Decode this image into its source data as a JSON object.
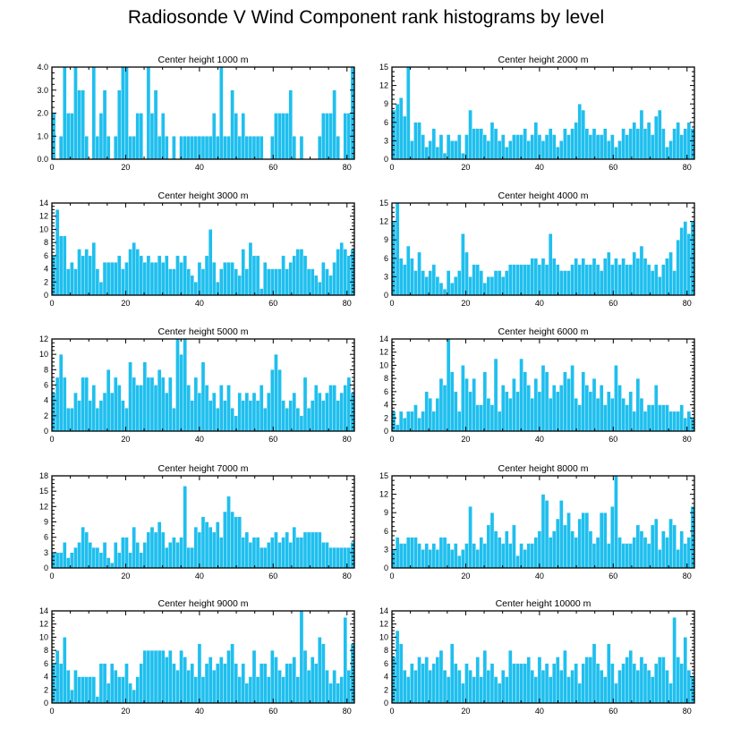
{
  "title": "Radiosonde V Wind Component rank histograms by level",
  "colors": {
    "bar": "#1fbfee",
    "axis": "#000000",
    "background": "#ffffff"
  },
  "chart_data": [
    {
      "type": "bar",
      "title": "Center height 1000 m",
      "xlim": [
        0,
        82
      ],
      "xticks": [
        0,
        20,
        40,
        60,
        80
      ],
      "ylim": [
        0,
        4
      ],
      "yticks": [
        "0.0",
        "1.0",
        "2.0",
        "3.0",
        "4.0"
      ],
      "values": [
        2,
        0,
        1,
        4,
        2,
        2,
        4,
        3,
        3,
        1,
        0,
        4,
        1,
        2,
        3,
        1,
        0,
        1,
        3,
        4,
        4,
        1,
        1,
        2,
        2,
        0,
        4,
        2,
        3,
        1,
        2,
        1,
        0,
        1,
        0,
        1,
        1,
        1,
        1,
        1,
        1,
        1,
        1,
        1,
        2,
        1,
        4,
        1,
        1,
        3,
        2,
        1,
        2,
        1,
        1,
        1,
        1,
        1,
        0,
        0,
        1,
        2,
        2,
        2,
        2,
        3,
        1,
        0,
        1,
        0,
        0,
        0,
        0,
        1,
        2,
        2,
        2,
        3,
        1,
        0,
        2,
        2,
        4
      ]
    },
    {
      "type": "bar",
      "title": "Center height 2000 m",
      "xlim": [
        0,
        82
      ],
      "xticks": [
        0,
        20,
        40,
        60,
        80
      ],
      "ylim": [
        0,
        15
      ],
      "yticks": [
        "0",
        "3",
        "6",
        "9",
        "12",
        "15"
      ],
      "values": [
        8,
        9,
        10,
        7,
        15,
        3,
        6,
        6,
        4,
        2,
        3,
        5,
        2,
        4,
        1,
        4,
        3,
        3,
        4,
        1,
        4,
        8,
        5,
        5,
        5,
        4,
        3,
        6,
        5,
        3,
        4,
        2,
        3,
        4,
        4,
        4,
        5,
        3,
        4,
        6,
        4,
        3,
        4,
        5,
        4,
        2,
        3,
        5,
        4,
        5,
        6,
        9,
        8,
        5,
        4,
        5,
        4,
        4,
        5,
        3,
        4,
        2,
        3,
        5,
        4,
        5,
        6,
        5,
        8,
        5,
        6,
        4,
        7,
        8,
        5,
        2,
        3,
        5,
        6,
        4,
        5,
        6,
        5
      ]
    },
    {
      "type": "bar",
      "title": "Center height 3000 m",
      "xlim": [
        0,
        82
      ],
      "xticks": [
        0,
        20,
        40,
        60,
        80
      ],
      "ylim": [
        0,
        14
      ],
      "yticks": [
        "0",
        "2",
        "4",
        "6",
        "8",
        "10",
        "12",
        "14"
      ],
      "values": [
        6,
        13,
        9,
        9,
        4,
        5,
        4,
        7,
        6,
        7,
        6,
        8,
        4,
        2,
        5,
        5,
        5,
        5,
        6,
        4,
        5,
        7,
        8,
        7,
        6,
        5,
        6,
        5,
        5,
        6,
        5,
        6,
        4,
        4,
        6,
        5,
        6,
        4,
        3,
        2,
        5,
        4,
        6,
        10,
        5,
        2,
        4,
        5,
        5,
        5,
        4,
        3,
        7,
        4,
        8,
        6,
        6,
        1,
        5,
        4,
        4,
        4,
        4,
        6,
        4,
        5,
        6,
        7,
        7,
        6,
        4,
        4,
        3,
        2,
        5,
        4,
        3,
        5,
        7,
        8,
        7,
        6,
        7
      ]
    },
    {
      "type": "bar",
      "title": "Center height 4000 m",
      "xlim": [
        0,
        82
      ],
      "xticks": [
        0,
        20,
        40,
        60,
        80
      ],
      "ylim": [
        0,
        15
      ],
      "yticks": [
        "0",
        "3",
        "6",
        "9",
        "12",
        "15"
      ],
      "values": [
        12,
        15,
        6,
        5,
        8,
        6,
        4,
        7,
        4,
        3,
        4,
        5,
        3,
        2,
        1,
        4,
        2,
        3,
        4,
        10,
        7,
        3,
        5,
        5,
        4,
        2,
        3,
        3,
        4,
        4,
        3,
        4,
        5,
        5,
        5,
        5,
        5,
        5,
        6,
        6,
        5,
        6,
        5,
        10,
        6,
        5,
        4,
        4,
        4,
        5,
        6,
        5,
        6,
        5,
        5,
        6,
        5,
        4,
        6,
        7,
        5,
        6,
        5,
        6,
        5,
        5,
        7,
        6,
        8,
        6,
        5,
        4,
        5,
        3,
        5,
        6,
        7,
        4,
        9,
        11,
        12,
        10,
        12
      ]
    },
    {
      "type": "bar",
      "title": "Center height 5000 m",
      "xlim": [
        0,
        82
      ],
      "xticks": [
        0,
        20,
        40,
        60,
        80
      ],
      "ylim": [
        0,
        12
      ],
      "yticks": [
        "0",
        "2",
        "4",
        "6",
        "8",
        "10",
        "12"
      ],
      "values": [
        5,
        7,
        10,
        7,
        3,
        3,
        5,
        4,
        7,
        7,
        4,
        6,
        3,
        4,
        5,
        8,
        5,
        7,
        6,
        4,
        3,
        9,
        7,
        6,
        6,
        9,
        7,
        7,
        6,
        8,
        7,
        5,
        7,
        3,
        12,
        10,
        12,
        6,
        4,
        7,
        5,
        9,
        6,
        4,
        5,
        3,
        6,
        4,
        6,
        3,
        2,
        5,
        4,
        5,
        4,
        5,
        4,
        6,
        3,
        5,
        8,
        10,
        8,
        4,
        3,
        4,
        5,
        3,
        2,
        7,
        3,
        4,
        6,
        5,
        4,
        5,
        6,
        6,
        4,
        5,
        6,
        7,
        5
      ]
    },
    {
      "type": "bar",
      "title": "Center height 6000 m",
      "xlim": [
        0,
        82
      ],
      "xticks": [
        0,
        20,
        40,
        60,
        80
      ],
      "ylim": [
        0,
        14
      ],
      "yticks": [
        "0",
        "2",
        "4",
        "6",
        "8",
        "10",
        "12",
        "14"
      ],
      "values": [
        3,
        1,
        3,
        2,
        3,
        3,
        4,
        2,
        3,
        6,
        5,
        3,
        5,
        8,
        7,
        14,
        9,
        6,
        3,
        10,
        8,
        6,
        8,
        4,
        4,
        9,
        5,
        4,
        11,
        3,
        7,
        6,
        5,
        8,
        6,
        11,
        9,
        7,
        5,
        8,
        6,
        10,
        9,
        5,
        7,
        6,
        7,
        9,
        8,
        10,
        5,
        4,
        9,
        7,
        6,
        8,
        5,
        7,
        4,
        6,
        5,
        10,
        7,
        5,
        4,
        6,
        3,
        8,
        5,
        3,
        4,
        4,
        7,
        4,
        4,
        4,
        3,
        3,
        3,
        4,
        2,
        3,
        2
      ]
    },
    {
      "type": "bar",
      "title": "Center height 7000 m",
      "xlim": [
        0,
        82
      ],
      "xticks": [
        0,
        20,
        40,
        60,
        80
      ],
      "ylim": [
        0,
        18
      ],
      "yticks": [
        "0",
        "3",
        "6",
        "9",
        "12",
        "15",
        "18"
      ],
      "values": [
        3,
        3,
        3,
        5,
        2,
        3,
        4,
        5,
        8,
        7,
        5,
        4,
        4,
        3,
        5,
        2,
        1,
        5,
        3,
        6,
        6,
        3,
        8,
        5,
        3,
        5,
        7,
        8,
        7,
        9,
        7,
        4,
        5,
        6,
        5,
        6,
        16,
        4,
        4,
        8,
        7,
        10,
        9,
        8,
        7,
        9,
        6,
        11,
        14,
        11,
        10,
        10,
        6,
        7,
        5,
        6,
        6,
        4,
        4,
        5,
        6,
        7,
        5,
        6,
        7,
        5,
        8,
        6,
        6,
        7,
        7,
        7,
        7,
        7,
        5,
        5,
        4,
        4,
        4,
        4,
        4,
        4,
        5
      ]
    },
    {
      "type": "bar",
      "title": "Center height 8000 m",
      "xlim": [
        0,
        82
      ],
      "xticks": [
        0,
        20,
        40,
        60,
        80
      ],
      "ylim": [
        0,
        15
      ],
      "yticks": [
        "0",
        "3",
        "6",
        "9",
        "12",
        "15"
      ],
      "values": [
        3,
        5,
        4,
        4,
        5,
        5,
        5,
        4,
        3,
        4,
        3,
        4,
        3,
        5,
        5,
        4,
        3,
        4,
        2,
        3,
        4,
        10,
        4,
        3,
        5,
        4,
        7,
        9,
        6,
        5,
        4,
        6,
        4,
        7,
        2,
        4,
        3,
        4,
        4,
        5,
        6,
        12,
        11,
        5,
        6,
        8,
        11,
        7,
        9,
        6,
        5,
        8,
        9,
        9,
        6,
        4,
        5,
        9,
        9,
        4,
        10,
        15,
        5,
        4,
        4,
        4,
        5,
        7,
        6,
        5,
        4,
        7,
        8,
        3,
        6,
        5,
        8,
        7,
        3,
        6,
        4,
        5,
        10
      ]
    },
    {
      "type": "bar",
      "title": "Center height 9000 m",
      "xlim": [
        0,
        82
      ],
      "xticks": [
        0,
        20,
        40,
        60,
        80
      ],
      "ylim": [
        0,
        14
      ],
      "yticks": [
        "0",
        "2",
        "4",
        "6",
        "8",
        "10",
        "12",
        "14"
      ],
      "values": [
        6,
        8,
        6,
        10,
        5,
        2,
        5,
        4,
        4,
        4,
        4,
        4,
        1,
        6,
        6,
        3,
        6,
        5,
        4,
        4,
        6,
        3,
        2,
        4,
        6,
        8,
        8,
        8,
        8,
        8,
        8,
        7,
        8,
        6,
        5,
        8,
        7,
        5,
        6,
        4,
        9,
        4,
        6,
        7,
        5,
        6,
        7,
        6,
        8,
        9,
        6,
        4,
        6,
        3,
        4,
        8,
        4,
        6,
        6,
        4,
        8,
        7,
        5,
        4,
        6,
        6,
        7,
        4,
        14,
        8,
        5,
        7,
        6,
        10,
        9,
        5,
        3,
        5,
        3,
        4,
        13,
        5,
        9
      ]
    },
    {
      "type": "bar",
      "title": "Center height 10000 m",
      "xlim": [
        0,
        82
      ],
      "xticks": [
        0,
        20,
        40,
        60,
        80
      ],
      "ylim": [
        0,
        14
      ],
      "yticks": [
        "0",
        "2",
        "4",
        "6",
        "8",
        "10",
        "12",
        "14"
      ],
      "values": [
        7,
        11,
        9,
        5,
        4,
        6,
        5,
        7,
        6,
        7,
        5,
        6,
        7,
        8,
        5,
        4,
        9,
        6,
        5,
        3,
        6,
        5,
        4,
        7,
        4,
        8,
        5,
        6,
        4,
        3,
        5,
        4,
        8,
        6,
        6,
        6,
        6,
        7,
        5,
        4,
        7,
        5,
        6,
        4,
        6,
        7,
        5,
        8,
        4,
        5,
        6,
        3,
        6,
        7,
        7,
        9,
        6,
        5,
        4,
        9,
        6,
        3,
        5,
        6,
        7,
        8,
        6,
        5,
        7,
        6,
        5,
        4,
        6,
        7,
        7,
        5,
        3,
        13,
        7,
        6,
        10,
        5,
        4
      ]
    }
  ]
}
